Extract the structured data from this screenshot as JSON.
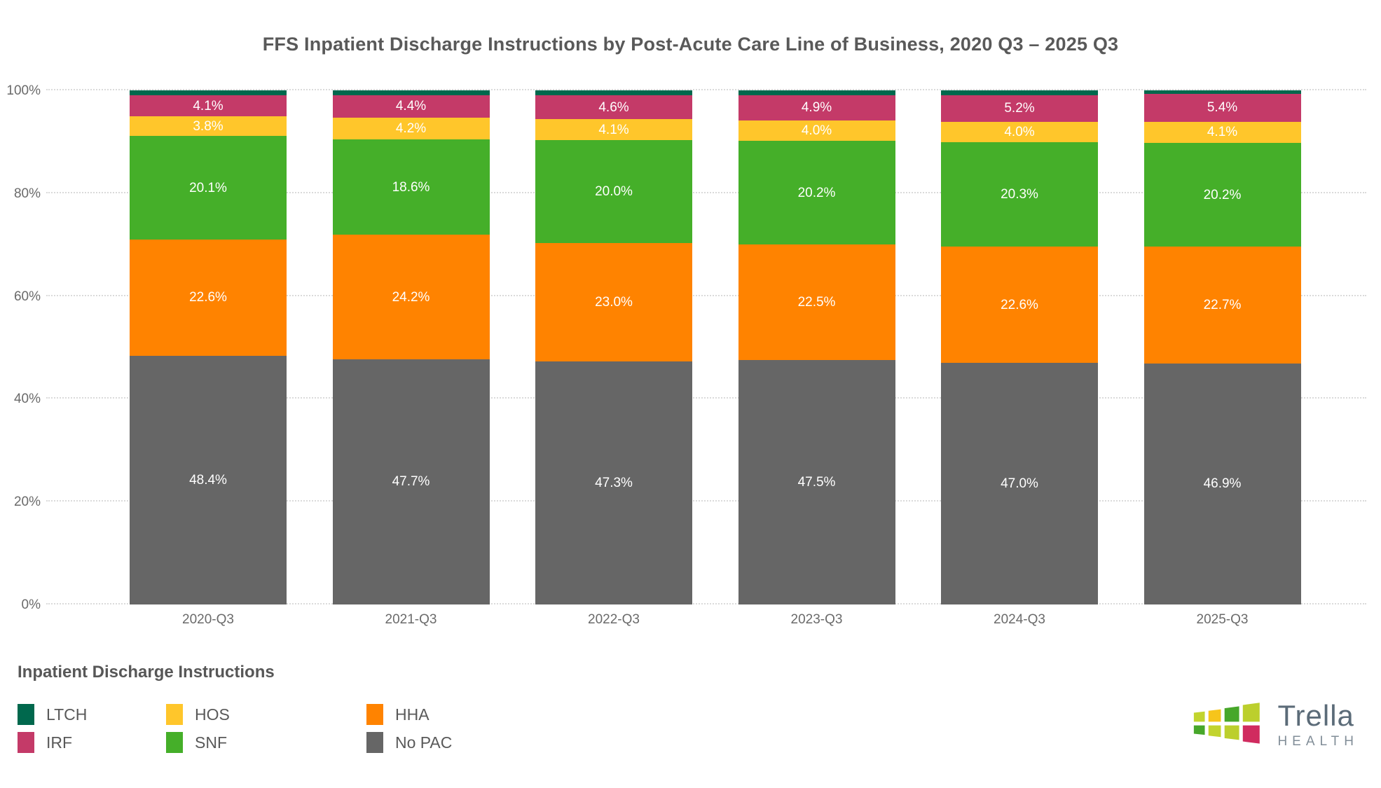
{
  "title": "FFS Inpatient Discharge Instructions by Post-Acute Care Line of Business, 2020 Q3 – 2025 Q3",
  "chart_data": {
    "type": "bar",
    "stacked": true,
    "orientation": "vertical",
    "categories": [
      "2020-Q3",
      "2021-Q3",
      "2022-Q3",
      "2023-Q3",
      "2024-Q3",
      "2025-Q3"
    ],
    "series": [
      {
        "name": "No PAC",
        "color": "#666666",
        "labeled": true,
        "values": [
          48.4,
          47.7,
          47.3,
          47.5,
          47.0,
          46.9
        ]
      },
      {
        "name": "HHA",
        "color": "#FF8300",
        "labeled": true,
        "values": [
          22.6,
          24.2,
          23.0,
          22.5,
          22.6,
          22.7
        ]
      },
      {
        "name": "SNF",
        "color": "#45AF29",
        "labeled": true,
        "values": [
          20.1,
          18.6,
          20.0,
          20.2,
          20.3,
          20.2
        ]
      },
      {
        "name": "HOS",
        "color": "#FFC62B",
        "labeled": true,
        "values": [
          3.8,
          4.2,
          4.1,
          4.0,
          4.0,
          4.1
        ]
      },
      {
        "name": "IRF",
        "color": "#C43A68",
        "labeled": true,
        "values": [
          4.1,
          4.4,
          4.6,
          4.9,
          5.2,
          5.4
        ]
      },
      {
        "name": "LTCH",
        "color": "#00684D",
        "labeled": false,
        "values": [
          1.0,
          0.9,
          1.0,
          0.9,
          0.9,
          0.7
        ]
      }
    ],
    "y_ticks": [
      "0%",
      "20%",
      "40%",
      "60%",
      "80%",
      "100%"
    ],
    "ylim": [
      0,
      100
    ],
    "grid": "dotted-horizontal",
    "legend_position": "bottom-left"
  },
  "legend": {
    "title": "Inpatient Discharge Instructions",
    "items": [
      {
        "label": "LTCH",
        "color": "#00684D"
      },
      {
        "label": "IRF",
        "color": "#C43A68"
      },
      {
        "label": "HOS",
        "color": "#FFC62B"
      },
      {
        "label": "SNF",
        "color": "#45AF29"
      },
      {
        "label": "HHA",
        "color": "#FF8300"
      },
      {
        "label": "No PAC",
        "color": "#666666"
      }
    ]
  },
  "logo": {
    "brand": "Trella",
    "sub": "HEALTH",
    "tiles": [
      "#C2D42E",
      "#F6C51B",
      "#47A72A",
      "#BCCF2D",
      "#47A72A",
      "#C2D42E",
      "#BCCF2D",
      "#D02B5F"
    ]
  }
}
